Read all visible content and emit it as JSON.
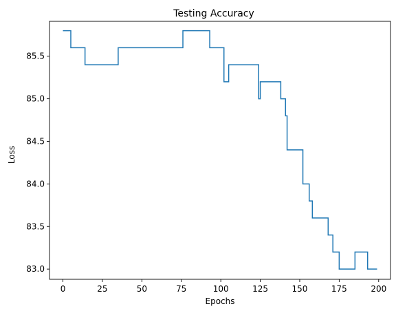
{
  "chart_data": {
    "type": "line",
    "title": "Testing Accuracy",
    "xlabel": "Epochs",
    "ylabel": "Loss",
    "xlim": [
      -8.5,
      207.5
    ],
    "ylim": [
      82.88,
      85.91
    ],
    "xticks": [
      0,
      25,
      50,
      75,
      100,
      125,
      150,
      175,
      200
    ],
    "yticks": [
      83.0,
      83.5,
      84.0,
      84.5,
      85.0,
      85.5
    ],
    "ytick_labels": [
      "83.0",
      "83.5",
      "84.0",
      "84.5",
      "85.0",
      "85.5"
    ],
    "grid": false,
    "series": [
      {
        "color": "#1f77b4",
        "step_points": [
          [
            0,
            85.8
          ],
          [
            5,
            85.6
          ],
          [
            14,
            85.4
          ],
          [
            35,
            85.6
          ],
          [
            76,
            85.8
          ],
          [
            93,
            85.6
          ],
          [
            102,
            85.2
          ],
          [
            105,
            85.4
          ],
          [
            124,
            85.0
          ],
          [
            125,
            85.2
          ],
          [
            138,
            85.0
          ],
          [
            141,
            84.8
          ],
          [
            142,
            84.4
          ],
          [
            152,
            84.0
          ],
          [
            156,
            83.8
          ],
          [
            158,
            83.6
          ],
          [
            168,
            83.4
          ],
          [
            171,
            83.2
          ],
          [
            175,
            83.0
          ],
          [
            185,
            83.2
          ],
          [
            193,
            83.0
          ],
          [
            199,
            83.0
          ]
        ]
      }
    ]
  }
}
